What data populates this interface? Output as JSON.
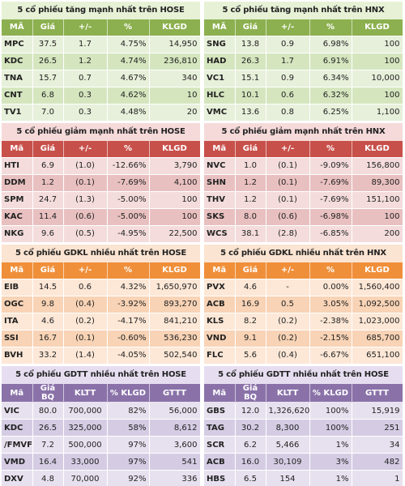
{
  "panels": [
    {
      "id": "hose-gainers",
      "title": "5 cổ phiếu tăng mạnh nhất trên HOSE",
      "headers": [
        "MÃ",
        "Giá",
        "+/-",
        "%",
        "KLGD"
      ],
      "rows": [
        [
          "MPC",
          "37.5",
          "1.7",
          "4.75%",
          "14,950"
        ],
        [
          "KDC",
          "26.5",
          "1.2",
          "4.74%",
          "236,810"
        ],
        [
          "TNA",
          "15.7",
          "0.7",
          "4.67%",
          "340"
        ],
        [
          "CNT",
          "6.8",
          "0.3",
          "4.62%",
          "10"
        ],
        [
          "TV1",
          "7.0",
          "0.3",
          "4.48%",
          "20"
        ]
      ]
    },
    {
      "id": "hnx-gainers",
      "title": "5 cổ phiếu tăng mạnh nhất trên HNX",
      "headers": [
        "MÃ",
        "Giá",
        "+/-",
        "%",
        "KLGD"
      ],
      "rows": [
        [
          "SNG",
          "13.8",
          "0.9",
          "6.98%",
          "100"
        ],
        [
          "HAD",
          "26.3",
          "1.7",
          "6.91%",
          "100"
        ],
        [
          "VC1",
          "15.1",
          "0.9",
          "6.34%",
          "10,000"
        ],
        [
          "HLC",
          "10.1",
          "0.6",
          "6.32%",
          "100"
        ],
        [
          "VMC",
          "13.6",
          "0.8",
          "6.25%",
          "1,100"
        ]
      ]
    },
    {
      "id": "hose-losers",
      "title": "5 cổ phiếu giảm mạnh nhất trên HOSE",
      "headers": [
        "Mã",
        "Giá",
        "+/-",
        "%",
        "KLGD"
      ],
      "rows": [
        [
          "HTI",
          "6.9",
          "(1.0)",
          "-12.66%",
          "3,790"
        ],
        [
          "DDM",
          "1.2",
          "(0.1)",
          "-7.69%",
          "4,100"
        ],
        [
          "SPM",
          "24.7",
          "(1.3)",
          "-5.00%",
          "100"
        ],
        [
          "KAC",
          "11.4",
          "(0.6)",
          "-5.00%",
          "100"
        ],
        [
          "NKG",
          "9.6",
          "(0.5)",
          "-4.95%",
          "22,500"
        ]
      ]
    },
    {
      "id": "hnx-losers",
      "title": "5 cổ phiếu giảm mạnh nhất trên HNX",
      "headers": [
        "Mã",
        "Giá",
        "+/-",
        "%",
        "KLGD"
      ],
      "rows": [
        [
          "NVC",
          "1.0",
          "(0.1)",
          "-9.09%",
          "156,800"
        ],
        [
          "SHN",
          "1.2",
          "(0.1)",
          "-7.69%",
          "89,300"
        ],
        [
          "THV",
          "1.2",
          "(0.1)",
          "-7.69%",
          "151,100"
        ],
        [
          "SKS",
          "8.0",
          "(0.6)",
          "-6.98%",
          "100"
        ],
        [
          "WCS",
          "38.1",
          "(2.8)",
          "-6.85%",
          "200"
        ]
      ]
    },
    {
      "id": "hose-volume",
      "title": "5 cổ phiếu GDKL nhiều nhất trên HOSE",
      "headers": [
        "Mã",
        "Giá",
        "+/-",
        "%",
        "KLGD"
      ],
      "rows": [
        [
          "EIB",
          "14.5",
          "0.6",
          "4.32%",
          "1,650,970"
        ],
        [
          "OGC",
          "9.8",
          "(0.4)",
          "-3.92%",
          "893,270"
        ],
        [
          "ITA",
          "4.6",
          "(0.2)",
          "-4.17%",
          "841,210"
        ],
        [
          "SSI",
          "16.7",
          "(0.1)",
          "-0.60%",
          "536,230"
        ],
        [
          "BVH",
          "33.2",
          "(1.4)",
          "-4.05%",
          "502,540"
        ]
      ]
    },
    {
      "id": "hnx-volume",
      "title": "5 cổ phiếu GDKL nhiều nhất trên HNX",
      "headers": [
        "Mã",
        "Giá",
        "+/-",
        "%",
        "KLGD"
      ],
      "rows": [
        [
          "PVX",
          "4.6",
          "-",
          "0.00%",
          "1,560,400"
        ],
        [
          "ACB",
          "16.9",
          "0.5",
          "3.05%",
          "1,092,500"
        ],
        [
          "KLS",
          "8.2",
          "(0.2)",
          "-2.38%",
          "1,023,000"
        ],
        [
          "VND",
          "9.1",
          "(0.2)",
          "-2.15%",
          "685,700"
        ],
        [
          "FLC",
          "5.6",
          "(0.4)",
          "-6.67%",
          "651,100"
        ]
      ]
    },
    {
      "id": "hose-value",
      "title": "5 cổ phiếu GDTT nhiều nhất trên HOSE",
      "headers": [
        "Mã",
        "Giá BQ",
        "KLTT",
        "% KLGD",
        "GTTT"
      ],
      "rows": [
        [
          "VIC",
          "80.0",
          "700,000",
          "82%",
          "56,000"
        ],
        [
          "KDC",
          "26.5",
          "325,000",
          "58%",
          "8,612"
        ],
        [
          "/FMVF",
          "7.2",
          "500,000",
          "97%",
          "3,600"
        ],
        [
          "VMD",
          "16.4",
          "33,000",
          "97%",
          "541"
        ],
        [
          "DXV",
          "4.8",
          "70,000",
          "92%",
          "336"
        ]
      ]
    },
    {
      "id": "hnx-value",
      "title": "5 cổ phiếu GDTT nhiều nhất trên HOSE",
      "headers": [
        "Mã",
        "Giá BQ",
        "KLTT",
        "% KLGD",
        "GTTT"
      ],
      "rows": [
        [
          "GBS",
          "12.0",
          "1,326,620",
          "100%",
          "15,919"
        ],
        [
          "TAG",
          "30.2",
          "8,300",
          "100%",
          "251"
        ],
        [
          "SCR",
          "6.2",
          "5,466",
          "1%",
          "34"
        ],
        [
          "ACB",
          "16.0",
          "30,109",
          "3%",
          "482"
        ],
        [
          "HBS",
          "6.5",
          "154",
          "1%",
          "1"
        ]
      ]
    }
  ],
  "themes": {
    "green": "#8cb04f",
    "red": "#c8504a",
    "orange": "#f08f3a",
    "purple": "#8a72a9"
  }
}
